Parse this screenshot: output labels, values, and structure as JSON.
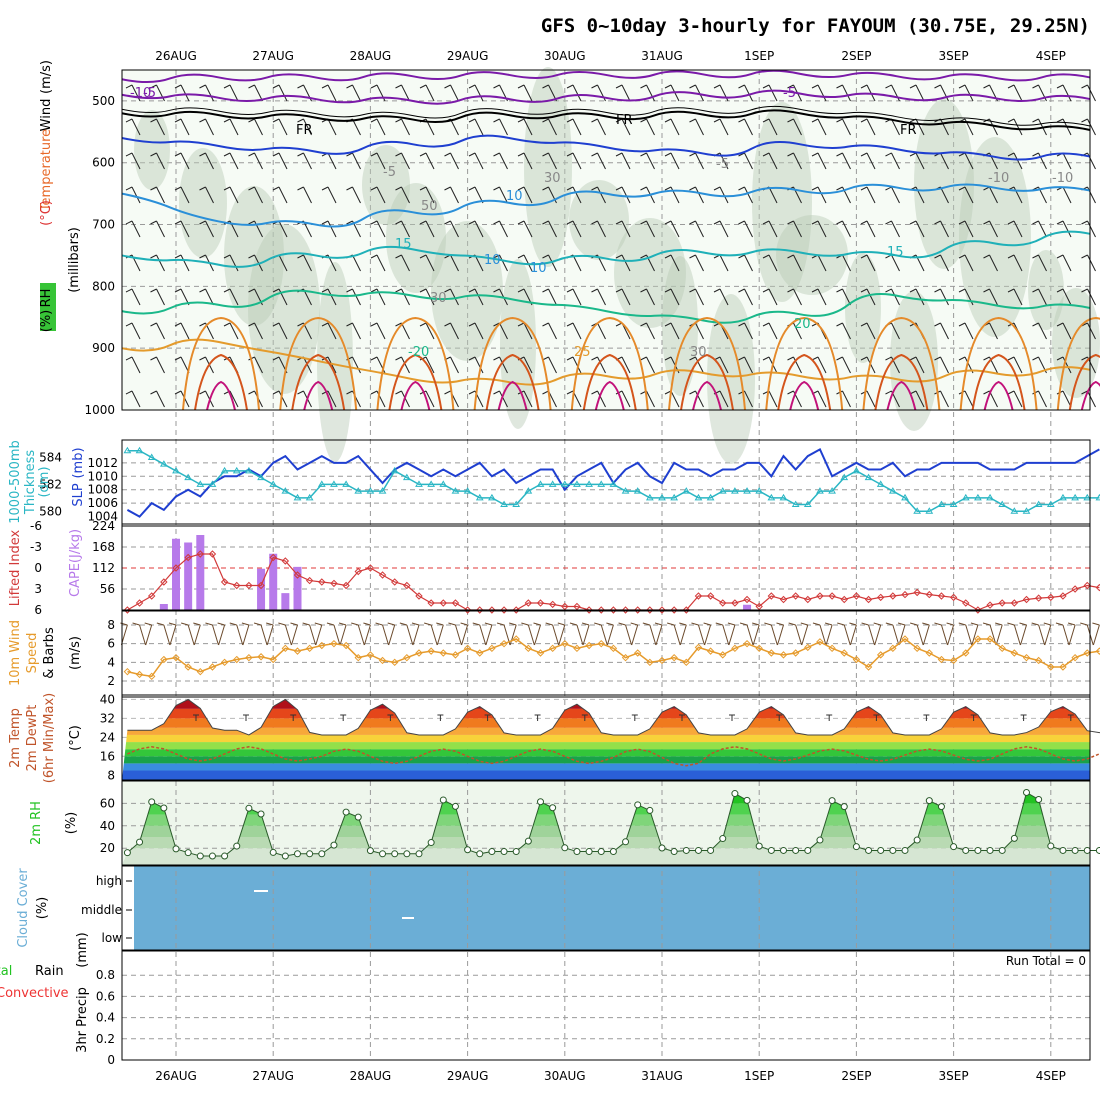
{
  "title": "GFS 0~10day 3-hourly for FAYOUM (30.75E, 29.25N)",
  "colors": {
    "grid": "#9a9a9a",
    "rh_shade": "#e4f1e2",
    "rh_dark": "#b8c9b6",
    "slp": "#1f3fd0",
    "thick": "#2ab6c4",
    "lifted": "#d23a3a",
    "cape": "#b77aea",
    "wind": "#e69b2c",
    "cloud": "#6baed6",
    "rh2m": "#22c322"
  },
  "chart_data": [
    {
      "panel": "upper-air",
      "type": "heatmap",
      "ylabel_parts": [
        "Wind",
        "(m/s)",
        "Temperature",
        "(°C)",
        "RH",
        "(%)"
      ],
      "ylabel2": "(millibars)",
      "y_ticks": [
        "500",
        "600",
        "700",
        "800",
        "900",
        "1000"
      ],
      "x_ticks": [
        "26AUG",
        "27AUG",
        "28AUG",
        "29AUG",
        "30AUG",
        "31AUG",
        "1SEP",
        "2SEP",
        "3SEP",
        "4SEP"
      ],
      "contour_labels": [
        "-10",
        "-5",
        "-5",
        "FR",
        "FR",
        "FR",
        "-5",
        "-5",
        "30",
        "-10",
        "-10",
        "50",
        "10",
        "10",
        "15",
        "15",
        "10",
        "30",
        "20",
        "-20",
        "25",
        "30"
      ],
      "isotherms": [
        {
          "label": "-10",
          "values": [
            465,
            462,
            462,
            460,
            458,
            458,
            457,
            456,
            460,
            462,
            462
          ]
        },
        {
          "label": "-5",
          "values": [
            490,
            495,
            497,
            500,
            497,
            495,
            490,
            488,
            494,
            495,
            497
          ]
        },
        {
          "label": "FR",
          "values": [
            520,
            523,
            527,
            530,
            523,
            525,
            522,
            520,
            532,
            540,
            547
          ]
        },
        {
          "label": "5",
          "values": [
            560,
            573,
            582,
            570,
            560,
            575,
            585,
            570,
            578,
            590,
            590
          ]
        },
        {
          "label": "10",
          "values": [
            650,
            695,
            700,
            680,
            665,
            650,
            650,
            645,
            640,
            640,
            645
          ]
        },
        {
          "label": "15",
          "values": [
            750,
            765,
            750,
            740,
            760,
            755,
            745,
            745,
            750,
            730,
            715
          ]
        },
        {
          "label": "20",
          "values": [
            840,
            830,
            810,
            815,
            820,
            840,
            855,
            845,
            815,
            830,
            835
          ]
        },
        {
          "label": "25",
          "values": [
            900,
            890,
            920,
            950,
            955,
            945,
            940,
            945,
            950,
            940,
            935
          ]
        }
      ]
    },
    {
      "panel": "thickness-slp",
      "type": "line",
      "ylabel_parts": [
        "1000-500mb",
        "Thickness",
        "(dm)",
        "SLP",
        "(mb)"
      ],
      "left_ticks": [
        "584",
        "582",
        "580"
      ],
      "right_ticks": [
        "1012",
        "1010",
        "1008",
        "1006",
        "1004"
      ],
      "series": [
        {
          "name": "SLP",
          "values": [
            1005,
            1004,
            1006,
            1005,
            1007,
            1008,
            1007,
            1009,
            1010,
            1010,
            1011,
            1010,
            1012,
            1013,
            1011,
            1012,
            1013,
            1012,
            1012,
            1013,
            1011,
            1009,
            1011,
            1012,
            1011,
            1010,
            1011,
            1010,
            1011,
            1012,
            1010,
            1011,
            1009,
            1010,
            1011,
            1011,
            1008,
            1010,
            1011,
            1012,
            1009,
            1011,
            1012,
            1010,
            1009,
            1012,
            1011,
            1011,
            1010,
            1011,
            1011,
            1012,
            1012,
            1010,
            1013,
            1011,
            1013,
            1014,
            1010,
            1011,
            1012,
            1011,
            1011,
            1012,
            1010,
            1011,
            1011,
            1012,
            1012,
            1012,
            1012,
            1011,
            1011,
            1011,
            1012,
            1012,
            1012,
            1012,
            1012,
            1013,
            1014
          ]
        },
        {
          "name": "Thickness",
          "values": [
            584.5,
            584.5,
            584,
            583.5,
            583,
            582.5,
            582,
            582,
            583,
            583,
            583,
            582.5,
            582,
            581.5,
            581,
            581,
            582,
            582,
            582,
            581.5,
            581.5,
            581.5,
            583,
            582.5,
            582,
            582,
            582,
            581.5,
            581.5,
            581,
            581,
            580.5,
            580.5,
            581.5,
            582,
            582,
            582,
            582,
            582,
            582,
            582,
            581.5,
            581.5,
            581,
            581,
            581,
            581.5,
            581,
            581,
            581.5,
            581.5,
            581.5,
            581.5,
            581,
            581,
            580.5,
            580.5,
            581.5,
            581.5,
            582.5,
            583,
            582.5,
            582,
            581.5,
            581,
            580,
            580,
            580.5,
            580.5,
            581,
            581,
            581,
            580.5,
            580,
            580,
            580.5,
            580.5,
            581,
            581,
            581,
            581
          ]
        }
      ]
    },
    {
      "panel": "cape-li",
      "type": "bar",
      "ylabel_parts": [
        "Lifted Index",
        "CAPE",
        "(J/kg)"
      ],
      "li_ticks": [
        "-6",
        "-3",
        "0",
        "3",
        "6"
      ],
      "cape_ticks": [
        "224",
        "168",
        "112",
        "56"
      ],
      "cape_bars": [
        {
          "step": 3,
          "value": 16
        },
        {
          "step": 4,
          "value": 190
        },
        {
          "step": 5,
          "value": 180
        },
        {
          "step": 6,
          "value": 200
        },
        {
          "step": 11,
          "value": 110
        },
        {
          "step": 12,
          "value": 150
        },
        {
          "step": 13,
          "value": 45
        },
        {
          "step": 14,
          "value": 115
        },
        {
          "step": 51,
          "value": 14
        }
      ],
      "lifted_index": [
        6,
        5,
        4,
        2,
        0,
        -1.5,
        -2,
        -2,
        2,
        2.5,
        2.5,
        2.5,
        -1.5,
        -1,
        1,
        1.8,
        2,
        2.2,
        2.5,
        0.5,
        0,
        1,
        2,
        2.5,
        4,
        5,
        5,
        5,
        6,
        6,
        6,
        6,
        6,
        5,
        5,
        5.2,
        5.5,
        5.5,
        6,
        6,
        6,
        6,
        6,
        6,
        6,
        6,
        6,
        4,
        4,
        5,
        5,
        4.5,
        5.5,
        4,
        4.5,
        4,
        4.5,
        4,
        4,
        4.5,
        4,
        4.5,
        4.2,
        4,
        3.8,
        3.5,
        3.8,
        4,
        4.2,
        5,
        6,
        5.3,
        5,
        5,
        4.5,
        4.3,
        4.2,
        4,
        3,
        2.5,
        2.8
      ]
    },
    {
      "panel": "wind10m",
      "type": "line",
      "ylabel_parts": [
        "10m Wind",
        "Speed",
        "& Barbs",
        "(m/s)"
      ],
      "y_ticks": [
        "8",
        "6",
        "4",
        "2"
      ],
      "series": [
        {
          "name": "Speed",
          "values": [
            3,
            2.7,
            2.5,
            4.3,
            4.5,
            3.5,
            3,
            3.5,
            4,
            4.3,
            4.5,
            4.6,
            4.3,
            5.5,
            5.2,
            5.5,
            5.8,
            6,
            5.8,
            4.5,
            4.8,
            4.2,
            4,
            4.5,
            5,
            5.2,
            5,
            4.8,
            5.5,
            5,
            5.5,
            6,
            6.5,
            5.5,
            5,
            5.5,
            6,
            5.5,
            5.8,
            6,
            5.5,
            4.5,
            5,
            4,
            4.2,
            4.5,
            4,
            5.6,
            5.2,
            4.8,
            5.5,
            6,
            5.5,
            5,
            4.8,
            5,
            5.6,
            6.2,
            5.5,
            5,
            4.3,
            3.5,
            4.8,
            5.5,
            6.5,
            5.5,
            5,
            4.3,
            4.2,
            5,
            6.5,
            6.5,
            5.5,
            5,
            4.5,
            4.2,
            3.5,
            3.5,
            4.5,
            5,
            5.2
          ]
        }
      ]
    },
    {
      "panel": "temp2m",
      "type": "area",
      "ylabel_parts": [
        "2m Temp",
        "2m DewPt",
        "(6hr Min/Max)",
        "(°C)"
      ],
      "y_ticks": [
        "40",
        "32",
        "24",
        "16",
        "8"
      ],
      "temp_daily": {
        "min": [
          27,
          25,
          25,
          25,
          25,
          25,
          25,
          25,
          25,
          26
        ],
        "max": [
          40,
          40,
          38,
          37,
          38,
          37,
          37,
          37,
          37,
          37
        ]
      },
      "dewpoint_daily": {
        "min": [
          14,
          14,
          13,
          13,
          13,
          12,
          14,
          14,
          14,
          14
        ],
        "max": [
          20,
          20,
          19,
          19,
          19,
          19,
          20,
          19,
          19,
          20
        ]
      }
    },
    {
      "panel": "rh2m",
      "type": "area",
      "ylabel_parts": [
        "2m RH",
        "(%)"
      ],
      "y_ticks": [
        "60",
        "40",
        "20"
      ],
      "daily": {
        "min": [
          16,
          13,
          15,
          15,
          17,
          17,
          18,
          18,
          18,
          18
        ],
        "max": [
          66,
          60,
          56,
          68,
          66,
          63,
          74,
          67,
          67,
          75
        ]
      }
    },
    {
      "panel": "cloud",
      "type": "area",
      "ylabel_parts": [
        "Cloud Cover",
        "(%)"
      ],
      "y_labels": [
        "high",
        "middle",
        "low"
      ]
    },
    {
      "panel": "precip",
      "type": "bar",
      "ylabel_parts": [
        "Total",
        "Rain",
        "Convective",
        "3hr Precip",
        "(mm)"
      ],
      "y_ticks": [
        "0.8",
        "0.6",
        "0.4",
        "0.2",
        "0"
      ],
      "run_total": "Run Total = 0",
      "values": []
    }
  ]
}
